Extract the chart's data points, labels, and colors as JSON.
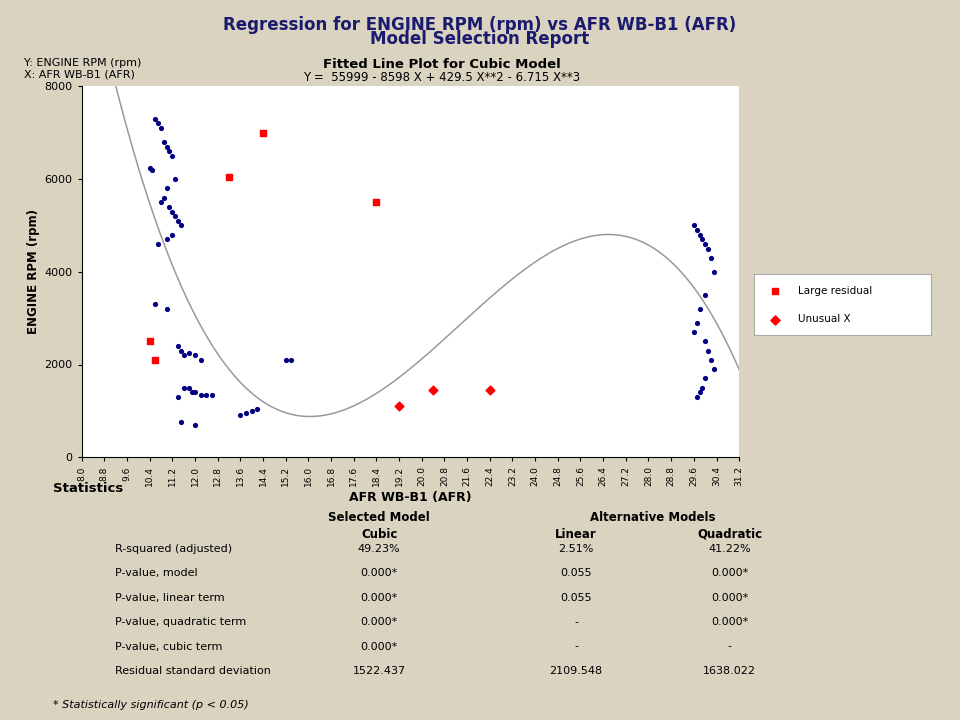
{
  "title_line1": "Regression for ENGINE RPM (rpm) vs AFR WB-B1 (AFR)",
  "title_line2": "Model Selection Report",
  "subtitle1": "Fitted Line Plot for Cubic Model",
  "subtitle2": "Y =  55999 - 8598 X + 429.5 X**2 - 6.715 X**3",
  "ylabel_corner": "Y: ENGINE RPM (rpm)",
  "xlabel_corner": "X: AFR WB-B1 (AFR)",
  "ylabel": "ENGINE RPM (rpm)",
  "xlabel": "AFR WB-B1 (AFR)",
  "bg_color": "#d9d3c0",
  "plot_bg": "#ffffff",
  "coef": [
    55999,
    -8598,
    429.5,
    -6.715
  ],
  "xlim": [
    8.0,
    31.2
  ],
  "ylim": [
    0,
    8000
  ],
  "xticks": [
    8.0,
    8.8,
    9.6,
    10.4,
    11.2,
    12.0,
    12.8,
    13.6,
    14.4,
    15.2,
    16.0,
    16.8,
    17.6,
    18.4,
    19.2,
    20.0,
    20.8,
    21.6,
    22.4,
    23.2,
    24.0,
    24.8,
    25.6,
    26.4,
    27.2,
    28.0,
    28.8,
    29.6,
    30.4,
    31.2
  ],
  "yticks": [
    0,
    2000,
    4000,
    6000,
    8000
  ],
  "blue_points": [
    [
      10.4,
      6250
    ],
    [
      10.5,
      6200
    ],
    [
      10.6,
      7300
    ],
    [
      10.7,
      7200
    ],
    [
      10.8,
      7100
    ],
    [
      10.9,
      6800
    ],
    [
      11.0,
      6700
    ],
    [
      11.1,
      6600
    ],
    [
      11.2,
      6500
    ],
    [
      11.3,
      6000
    ],
    [
      11.0,
      5800
    ],
    [
      10.8,
      5500
    ],
    [
      10.9,
      5600
    ],
    [
      11.1,
      5400
    ],
    [
      11.2,
      5300
    ],
    [
      11.3,
      5200
    ],
    [
      11.4,
      5100
    ],
    [
      11.5,
      5000
    ],
    [
      11.2,
      4800
    ],
    [
      11.0,
      4700
    ],
    [
      10.7,
      4600
    ],
    [
      10.6,
      3300
    ],
    [
      11.0,
      3200
    ],
    [
      11.4,
      2400
    ],
    [
      11.5,
      2300
    ],
    [
      11.6,
      2200
    ],
    [
      11.8,
      2250
    ],
    [
      12.0,
      2200
    ],
    [
      12.2,
      2100
    ],
    [
      11.6,
      1500
    ],
    [
      11.8,
      1500
    ],
    [
      11.9,
      1400
    ],
    [
      12.0,
      1400
    ],
    [
      12.2,
      1350
    ],
    [
      12.4,
      1350
    ],
    [
      12.6,
      1350
    ],
    [
      11.4,
      1300
    ],
    [
      11.5,
      750
    ],
    [
      12.0,
      700
    ],
    [
      13.6,
      900
    ],
    [
      13.8,
      950
    ],
    [
      14.0,
      1000
    ],
    [
      14.2,
      1050
    ],
    [
      15.2,
      2100
    ],
    [
      15.4,
      2100
    ],
    [
      29.6,
      5000
    ],
    [
      29.7,
      4900
    ],
    [
      29.8,
      4800
    ],
    [
      29.9,
      4700
    ],
    [
      30.0,
      4600
    ],
    [
      30.1,
      4500
    ],
    [
      30.2,
      4300
    ],
    [
      30.3,
      4000
    ],
    [
      30.0,
      3500
    ],
    [
      29.8,
      3200
    ],
    [
      29.7,
      2900
    ],
    [
      29.6,
      2700
    ],
    [
      30.0,
      2500
    ],
    [
      30.1,
      2300
    ],
    [
      30.2,
      2100
    ],
    [
      30.3,
      1900
    ],
    [
      30.0,
      1700
    ],
    [
      29.9,
      1500
    ],
    [
      29.8,
      1400
    ],
    [
      29.7,
      1300
    ]
  ],
  "red_square_points": [
    [
      10.4,
      2500
    ],
    [
      10.6,
      2100
    ],
    [
      14.4,
      7000
    ],
    [
      13.2,
      6050
    ],
    [
      18.4,
      5500
    ]
  ],
  "red_diamond_points": [
    [
      20.4,
      1450
    ],
    [
      22.4,
      1450
    ],
    [
      19.2,
      1100
    ]
  ],
  "legend_labels": [
    "Large residual",
    "Unusual X"
  ],
  "stats_title": "Statistics",
  "stats_rows": [
    [
      "R-squared (adjusted)",
      "49.23%",
      "2.51%",
      "41.22%"
    ],
    [
      "P-value, model",
      "0.000*",
      "0.055",
      "0.000*"
    ],
    [
      "P-value, linear term",
      "0.000*",
      "0.055",
      "0.000*"
    ],
    [
      "P-value, quadratic term",
      "0.000*",
      "-",
      "0.000*"
    ],
    [
      "P-value, cubic term",
      "0.000*",
      "-",
      "-"
    ],
    [
      "Residual standard deviation",
      "1522.437",
      "2109.548",
      "1638.022"
    ]
  ],
  "footnote": "* Statistically significant (p < 0.05)"
}
